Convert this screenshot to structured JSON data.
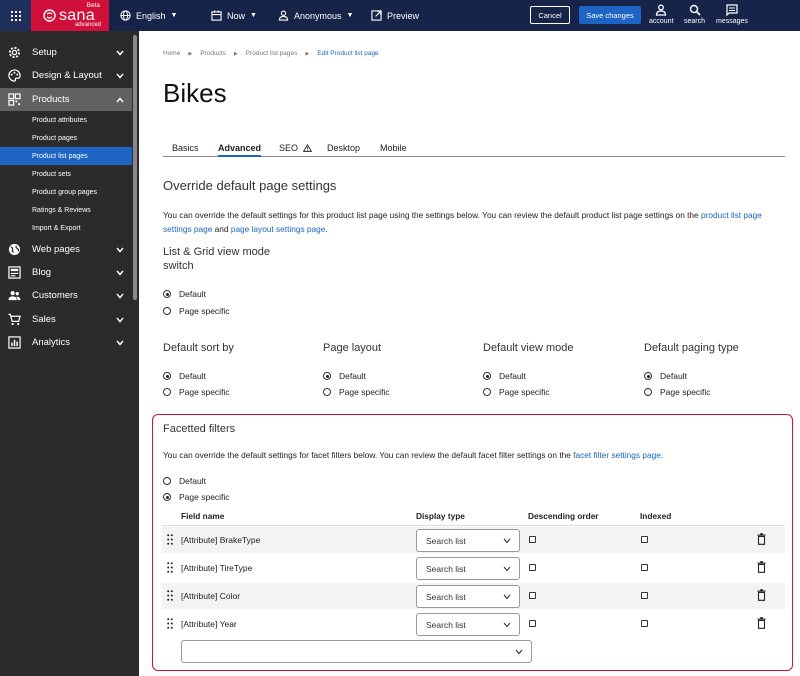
{
  "topbar": {
    "logo": {
      "name": "sana",
      "beta": "Beta",
      "edition": "advanced"
    },
    "language": "English",
    "date": "Now",
    "user": "Anonymous",
    "preview": "Preview",
    "cancel": "Cancel",
    "save": "Save changes",
    "account": "account",
    "search": "search",
    "messages": "messages"
  },
  "sidebar": {
    "items": [
      {
        "label": "Setup",
        "icon": "gear-icon"
      },
      {
        "label": "Design & Layout",
        "icon": "palette-icon"
      },
      {
        "label": "Products",
        "icon": "qr-grid-icon"
      },
      {
        "label": "Web pages",
        "icon": "globe-icon"
      },
      {
        "label": "Blog",
        "icon": "blog-icon"
      },
      {
        "label": "Customers",
        "icon": "people-icon"
      },
      {
        "label": "Sales",
        "icon": "cart-icon"
      },
      {
        "label": "Analytics",
        "icon": "chart-icon"
      }
    ],
    "sub_items": [
      "Product attributes",
      "Product pages",
      "Product list pages",
      "Product sets",
      "Product group pages",
      "Ratings & Reviews",
      "Import & Export"
    ]
  },
  "breadcrumb": [
    "Home",
    "Products",
    "Product list pages",
    "Edit Product list page"
  ],
  "page_title": "Bikes",
  "tabs": [
    "Basics",
    "Advanced",
    "SEO",
    "Desktop",
    "Mobile"
  ],
  "active_tab": "Advanced",
  "override": {
    "title": "Override default page settings",
    "para_text": "You can override the default settings for this product list page using the settings below. You can review the default product list page settings on the",
    "link1": "product list page settings page",
    "and": "and",
    "link2": "page layout settings page",
    "period": "."
  },
  "list_grid": {
    "label": "List & Grid view mode switch",
    "options": [
      "Default",
      "Page specific"
    ],
    "selected": "Default"
  },
  "groups": [
    {
      "label": "Default sort by",
      "options": [
        "Default",
        "Page specific"
      ]
    },
    {
      "label": "Page layout",
      "options": [
        "Default",
        "Page specific"
      ]
    },
    {
      "label": "Default view mode",
      "options": [
        "Default",
        "Page specific"
      ]
    },
    {
      "label": "Default paging type",
      "options": [
        "Default",
        "Page specific"
      ]
    }
  ],
  "facet": {
    "title": "Facetted filters",
    "para_text": "You can override the default settings for facet filters below. You can review the default facet filter settings on the",
    "link": "facet filter settings page",
    "period": ".",
    "options": [
      "Default",
      "Page specific"
    ],
    "selected": "Page specific",
    "columns": [
      "Field name",
      "Display type",
      "Descending order",
      "Indexed"
    ],
    "rows": [
      {
        "field": "[Attribute] BrakeType",
        "display": "Search list"
      },
      {
        "field": "[Attribute] TireType",
        "display": "Search list"
      },
      {
        "field": "[Attribute] Color",
        "display": "Search list"
      },
      {
        "field": "[Attribute] Year",
        "display": "Search list"
      }
    ]
  }
}
